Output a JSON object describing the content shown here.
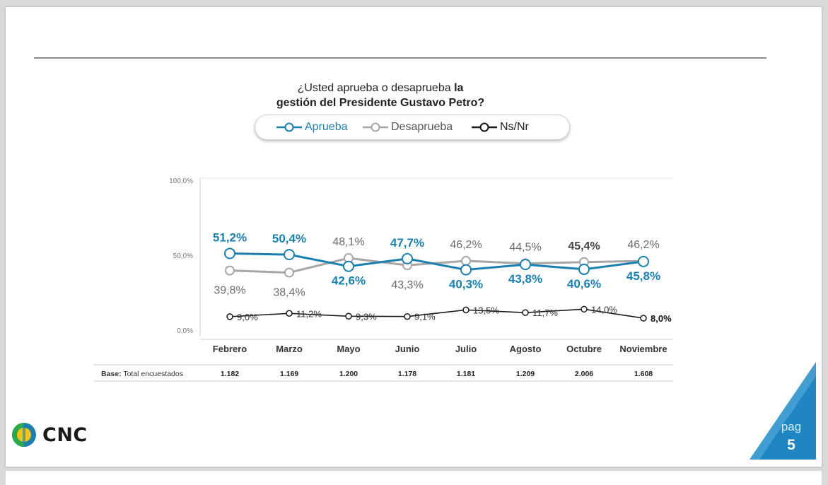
{
  "title": {
    "line1_regular": "¿Usted aprueba o desaprueba ",
    "line1_bold": "la",
    "line2_bold": "gestión del Presidente Gustavo Petro?"
  },
  "legend": {
    "items": [
      {
        "label": "Aprueba",
        "color": "#1a7fae"
      },
      {
        "label": "Desaprueba",
        "color": "#a6a6a6"
      },
      {
        "label": "Ns/Nr",
        "color": "#1a1a1a"
      }
    ]
  },
  "chart_data": {
    "type": "line",
    "categories": [
      "Febrero",
      "Marzo",
      "Mayo",
      "Junio",
      "Julio",
      "Agosto",
      "Octubre",
      "Noviembre"
    ],
    "yticks": [
      "100,0%",
      "50,0%",
      "0,0%"
    ],
    "ylim": [
      0,
      100
    ],
    "series": [
      {
        "name": "Aprueba",
        "color": "#1a7fae",
        "values": [
          51.2,
          50.4,
          42.6,
          47.7,
          40.3,
          43.8,
          40.6,
          45.8
        ],
        "labels": [
          "51,2%",
          "50,4%",
          "42,6%",
          "47,7%",
          "40,3%",
          "43,8%",
          "40,6%",
          "45,8%"
        ]
      },
      {
        "name": "Desaprueba",
        "color": "#a6a6a6",
        "values": [
          39.8,
          38.4,
          48.1,
          43.3,
          46.2,
          44.5,
          45.4,
          46.2
        ],
        "labels": [
          "39,8%",
          "38,4%",
          "48,1%",
          "43,3%",
          "46,2%",
          "44,5%",
          "45,4%",
          "46,2%"
        ]
      },
      {
        "name": "Ns/Nr",
        "color": "#1a1a1a",
        "values": [
          9.0,
          11.2,
          9.3,
          9.1,
          13.5,
          11.7,
          14.0,
          8.0
        ],
        "labels": [
          "9,0%",
          "11,2%",
          "9,3%",
          "9,1%",
          "13,5%",
          "11,7%",
          "14,0%",
          "8,0%"
        ]
      }
    ],
    "legend_position": "top",
    "grid": false
  },
  "base_row": {
    "label_bold": "Base:",
    "label_rest": " Total encuestados",
    "values": [
      "1.182",
      "1.169",
      "1.200",
      "1.178",
      "1.181",
      "1.209",
      "2.006",
      "1.608"
    ]
  },
  "logo": {
    "text": "CNC"
  },
  "page": {
    "label": "pag",
    "number": "5"
  },
  "colors": {
    "accent": "#1a7fae",
    "tag": "#1f86c2"
  }
}
